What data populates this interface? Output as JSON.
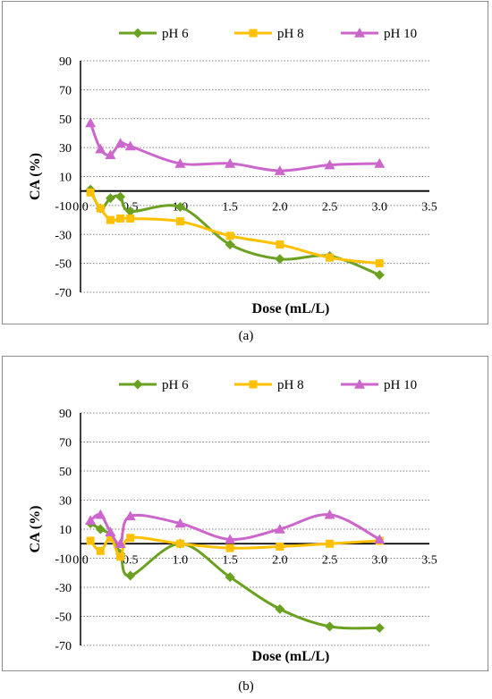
{
  "chart_data": [
    {
      "type": "line",
      "panel_label": "(a)",
      "xlabel": "Dose (mL/L)",
      "ylabel": "CA (%)",
      "xlim": [
        0,
        3.5
      ],
      "ylim": [
        -70,
        90
      ],
      "x_ticks": [
        "0.0",
        "0.5",
        "1.0",
        "1.5",
        "2.0",
        "2.5",
        "3.0",
        "3.5"
      ],
      "y_ticks": [
        "-70",
        "-50",
        "-30",
        "-10",
        "10",
        "30",
        "50",
        "70",
        "90"
      ],
      "grid": "horizontal dotted",
      "legend_position": "top",
      "series": [
        {
          "name": "pH 6",
          "color": "#6aa121",
          "marker": "diamond",
          "x": [
            0.1,
            0.2,
            0.3,
            0.4,
            0.5,
            1.0,
            1.5,
            2.0,
            2.5,
            3.0
          ],
          "y": [
            1,
            -12,
            -5,
            -4,
            -14,
            -11,
            -37,
            -47,
            -45,
            -58
          ]
        },
        {
          "name": "pH 8",
          "color": "#ffc000",
          "marker": "square",
          "x": [
            0.1,
            0.2,
            0.3,
            0.4,
            0.5,
            1.0,
            1.5,
            2.0,
            2.5,
            3.0
          ],
          "y": [
            -1,
            -12,
            -20,
            -19,
            -19,
            -21,
            -31,
            -37,
            -46,
            -50
          ]
        },
        {
          "name": "pH 10",
          "color": "#cc66cc",
          "marker": "triangle",
          "x": [
            0.1,
            0.2,
            0.3,
            0.4,
            0.5,
            1.0,
            1.5,
            2.0,
            2.5,
            3.0
          ],
          "y": [
            47,
            29,
            25,
            33,
            31,
            19,
            19,
            14,
            18,
            19
          ]
        }
      ]
    },
    {
      "type": "line",
      "panel_label": "(b)",
      "xlabel": "Dose (mL/L)",
      "ylabel": "CA (%)",
      "xlim": [
        0,
        3.5
      ],
      "ylim": [
        -70,
        90
      ],
      "x_ticks": [
        "0.0",
        "0.5",
        "1.0",
        "1.5",
        "2.0",
        "2.5",
        "3.0",
        "3.5"
      ],
      "y_ticks": [
        "-70",
        "-50",
        "-30",
        "-10",
        "10",
        "30",
        "50",
        "70",
        "90"
      ],
      "grid": "horizontal dotted",
      "legend_position": "top",
      "series": [
        {
          "name": "pH 6",
          "color": "#6aa121",
          "marker": "diamond",
          "x": [
            0.1,
            0.2,
            0.3,
            0.4,
            0.5,
            1.0,
            1.5,
            2.0,
            2.5,
            3.0
          ],
          "y": [
            14,
            10,
            6,
            -7,
            -22,
            0,
            -23,
            -45,
            -57,
            -58
          ]
        },
        {
          "name": "pH 8",
          "color": "#ffc000",
          "marker": "square",
          "x": [
            0.1,
            0.2,
            0.3,
            0.4,
            0.5,
            1.0,
            1.5,
            2.0,
            2.5,
            3.0
          ],
          "y": [
            2,
            -5,
            4,
            -9,
            4,
            0,
            -3,
            -2,
            0,
            2
          ]
        },
        {
          "name": "pH 10",
          "color": "#cc66cc",
          "marker": "triangle",
          "x": [
            0.1,
            0.2,
            0.3,
            0.4,
            0.5,
            1.0,
            1.5,
            2.0,
            2.5,
            3.0
          ],
          "y": [
            16,
            20,
            8,
            0,
            19,
            14,
            3,
            10,
            20,
            3
          ]
        }
      ]
    }
  ]
}
